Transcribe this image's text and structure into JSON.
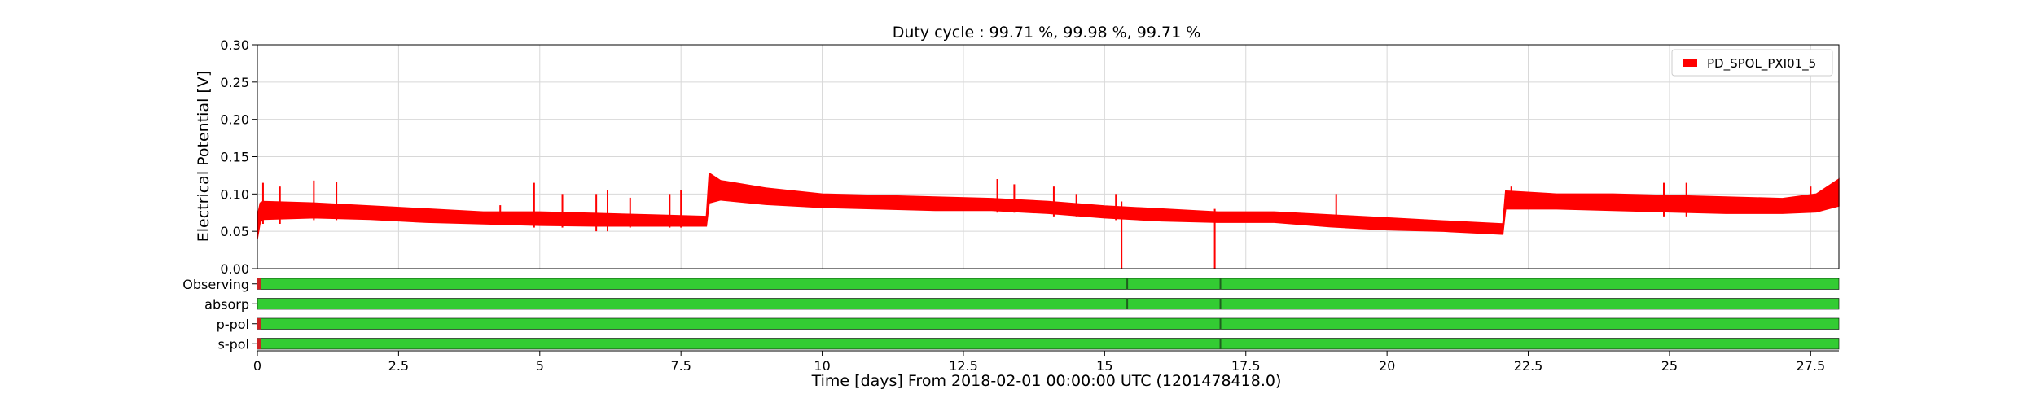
{
  "chart_data": {
    "type": "line",
    "title": "Duty cycle : 99.71 %, 99.98 %, 99.71 %",
    "xlabel": "Time [days] From 2018-02-01 00:00:00 UTC (1201478418.0)",
    "ylabel": "Electrical Potential [V]",
    "xlim": [
      0,
      28
    ],
    "ylim": [
      0,
      0.3
    ],
    "xticks": [
      0,
      2.5,
      5,
      7.5,
      10,
      12.5,
      15,
      17.5,
      20,
      22.5,
      25,
      27.5
    ],
    "xtick_labels": [
      "0",
      "2.5",
      "5",
      "7.5",
      "10",
      "12.5",
      "15",
      "17.5",
      "20",
      "22.5",
      "25",
      "27.5"
    ],
    "yticks": [
      0,
      0.05,
      0.1,
      0.15,
      0.2,
      0.25,
      0.3
    ],
    "ytick_labels": [
      "0.00",
      "0.05",
      "0.10",
      "0.15",
      "0.20",
      "0.25",
      "0.30"
    ],
    "grid": true,
    "legend": {
      "position": "top-right"
    },
    "series": [
      {
        "name": "PD_SPOL_PXI01_5",
        "color": "#ff0000",
        "band": {
          "x": [
            0,
            0.05,
            0.1,
            1,
            2,
            3,
            4,
            5,
            6,
            7,
            7.95,
            8.0,
            8.2,
            9,
            10,
            11,
            12,
            13,
            14,
            15,
            16,
            17,
            18,
            19,
            20,
            21,
            22.05,
            22.1,
            23,
            24,
            25,
            26,
            27,
            27.6,
            28
          ],
          "lo": [
            0.04,
            0.062,
            0.066,
            0.068,
            0.066,
            0.062,
            0.06,
            0.058,
            0.057,
            0.057,
            0.057,
            0.088,
            0.092,
            0.086,
            0.082,
            0.08,
            0.078,
            0.078,
            0.074,
            0.068,
            0.064,
            0.062,
            0.062,
            0.056,
            0.052,
            0.05,
            0.046,
            0.08,
            0.08,
            0.078,
            0.076,
            0.074,
            0.074,
            0.076,
            0.084
          ],
          "hi": [
            0.07,
            0.088,
            0.09,
            0.088,
            0.084,
            0.08,
            0.076,
            0.076,
            0.074,
            0.072,
            0.07,
            0.128,
            0.118,
            0.108,
            0.1,
            0.098,
            0.096,
            0.094,
            0.09,
            0.084,
            0.08,
            0.076,
            0.076,
            0.072,
            0.068,
            0.064,
            0.06,
            0.104,
            0.1,
            0.1,
            0.098,
            0.096,
            0.094,
            0.1,
            0.12
          ]
        },
        "spikes": [
          {
            "x": 0.1,
            "lo": 0.06,
            "hi": 0.115
          },
          {
            "x": 0.4,
            "lo": 0.06,
            "hi": 0.11
          },
          {
            "x": 1.0,
            "lo": 0.065,
            "hi": 0.118
          },
          {
            "x": 1.4,
            "lo": 0.065,
            "hi": 0.116
          },
          {
            "x": 4.3,
            "lo": 0.06,
            "hi": 0.085
          },
          {
            "x": 4.9,
            "lo": 0.055,
            "hi": 0.115
          },
          {
            "x": 5.4,
            "lo": 0.055,
            "hi": 0.1
          },
          {
            "x": 6.0,
            "lo": 0.05,
            "hi": 0.1
          },
          {
            "x": 6.2,
            "lo": 0.05,
            "hi": 0.105
          },
          {
            "x": 6.6,
            "lo": 0.055,
            "hi": 0.095
          },
          {
            "x": 7.3,
            "lo": 0.055,
            "hi": 0.1
          },
          {
            "x": 7.5,
            "lo": 0.055,
            "hi": 0.105
          },
          {
            "x": 13.1,
            "lo": 0.075,
            "hi": 0.12
          },
          {
            "x": 13.4,
            "lo": 0.075,
            "hi": 0.113
          },
          {
            "x": 14.1,
            "lo": 0.07,
            "hi": 0.11
          },
          {
            "x": 14.5,
            "lo": 0.07,
            "hi": 0.1
          },
          {
            "x": 15.2,
            "lo": 0.065,
            "hi": 0.1
          },
          {
            "x": 15.3,
            "lo": 0.0,
            "hi": 0.09
          },
          {
            "x": 16.95,
            "lo": 0.0,
            "hi": 0.08
          },
          {
            "x": 19.1,
            "lo": 0.06,
            "hi": 0.1
          },
          {
            "x": 22.2,
            "lo": 0.08,
            "hi": 0.11
          },
          {
            "x": 24.9,
            "lo": 0.07,
            "hi": 0.115
          },
          {
            "x": 25.3,
            "lo": 0.07,
            "hi": 0.115
          },
          {
            "x": 27.5,
            "lo": 0.075,
            "hi": 0.11
          }
        ]
      }
    ],
    "state_bars": [
      {
        "label": "Observing",
        "color": "#33cc33",
        "gaps": [
          0.0,
          15.4,
          17.05
        ]
      },
      {
        "label": "absorp",
        "color": "#33cc33",
        "gaps": [
          15.4,
          17.05
        ]
      },
      {
        "label": "p-pol",
        "color": "#33cc33",
        "gaps": [
          0.0,
          17.05
        ]
      },
      {
        "label": "s-pol",
        "color": "#33cc33",
        "gaps": [
          0.0,
          17.05
        ]
      }
    ]
  }
}
